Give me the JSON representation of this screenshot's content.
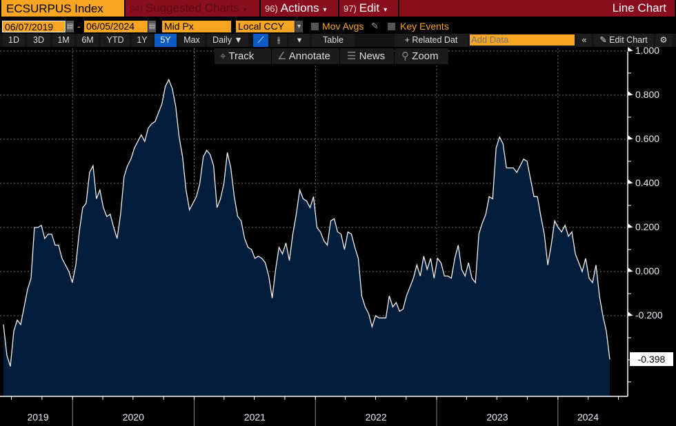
{
  "header": {
    "ticker": "ECSURPUS Index",
    "suggested": {
      "num": "94)",
      "label": "Suggested Charts"
    },
    "actions": {
      "num": "96)",
      "label": "Actions"
    },
    "edit": {
      "num": "97)",
      "label": "Edit"
    },
    "chart_type": "Line Chart"
  },
  "controls": {
    "start_date": "06/07/2019",
    "end_date": "06/05/2024",
    "dash": "-",
    "price": "Mid Px",
    "currency": "Local CCY",
    "mov_avgs": "Mov Avgs",
    "key_events": "Key Events",
    "ranges": [
      "1D",
      "3D",
      "1M",
      "6M",
      "YTD",
      "1Y",
      "5Y",
      "Max"
    ],
    "active_range": "5Y",
    "frequency": "Daily ▼",
    "table": "Table",
    "related": "+ Related Dat",
    "add_data_placeholder": "Add Data",
    "edit_chart": "Edit Chart"
  },
  "tools": {
    "track": "Track",
    "annotate": "Annotate",
    "news": "News",
    "zoom": "Zoom"
  },
  "colors": {
    "header": "#8a0f1e",
    "accent": "#f7a523",
    "fill": "#031d3a",
    "line": "#ffffff",
    "active": "#0b5bc4"
  },
  "chart_data": {
    "type": "area",
    "title": "ECSURPUS Index",
    "start": "2019-06-07",
    "end": "2024-06-05",
    "frequency": "evenly spaced samples",
    "ylim": [
      -0.556,
      1.0
    ],
    "y_ticks": [
      "1.000",
      "0.800",
      "0.600",
      "0.400",
      "0.200",
      "0.000",
      "-0.200"
    ],
    "y_tick_values": [
      1.0,
      0.8,
      0.6,
      0.4,
      0.2,
      0.0,
      -0.2
    ],
    "x_labels": [
      "2019",
      "2020",
      "2021",
      "2022",
      "2023",
      "2024"
    ],
    "x_year_starts": [
      2020,
      2021,
      2022,
      2023,
      2024
    ],
    "last_value": "-0.398",
    "grid": true,
    "values": [
      -0.24,
      -0.38,
      -0.43,
      -0.27,
      -0.22,
      -0.24,
      -0.16,
      -0.08,
      -0.03,
      0.2,
      0.2,
      0.21,
      0.15,
      0.17,
      0.17,
      0.12,
      0.12,
      0.06,
      0.03,
      0.0,
      -0.05,
      0.03,
      0.18,
      0.29,
      0.31,
      0.45,
      0.48,
      0.33,
      0.37,
      0.29,
      0.25,
      0.26,
      0.2,
      0.15,
      0.26,
      0.43,
      0.48,
      0.51,
      0.56,
      0.59,
      0.62,
      0.59,
      0.65,
      0.67,
      0.68,
      0.72,
      0.76,
      0.84,
      0.87,
      0.83,
      0.75,
      0.61,
      0.52,
      0.37,
      0.28,
      0.31,
      0.34,
      0.4,
      0.52,
      0.55,
      0.53,
      0.48,
      0.29,
      0.33,
      0.4,
      0.54,
      0.47,
      0.34,
      0.25,
      0.23,
      0.15,
      0.11,
      0.1,
      0.06,
      0.07,
      0.06,
      0.04,
      -0.02,
      -0.12,
      0.01,
      0.11,
      0.08,
      0.13,
      0.05,
      0.17,
      0.26,
      0.37,
      0.33,
      0.32,
      0.29,
      0.34,
      0.2,
      0.18,
      0.14,
      0.12,
      0.23,
      0.24,
      0.18,
      0.17,
      0.1,
      0.18,
      0.17,
      0.11,
      0.06,
      -0.11,
      -0.16,
      -0.19,
      -0.25,
      -0.2,
      -0.21,
      -0.21,
      -0.21,
      -0.11,
      -0.16,
      -0.14,
      -0.18,
      -0.17,
      -0.11,
      -0.07,
      -0.03,
      0.03,
      -0.02,
      0.07,
      0.01,
      0.06,
      -0.03,
      0.06,
      0.04,
      -0.02,
      -0.02,
      -0.03,
      0.06,
      0.12,
      0.01,
      -0.02,
      0.04,
      -0.03,
      -0.05,
      0.17,
      0.22,
      0.26,
      0.34,
      0.33,
      0.56,
      0.61,
      0.58,
      0.47,
      0.47,
      0.47,
      0.45,
      0.48,
      0.51,
      0.5,
      0.42,
      0.34,
      0.34,
      0.25,
      0.17,
      0.03,
      0.12,
      0.23,
      0.2,
      0.18,
      0.21,
      0.16,
      0.18,
      0.08,
      0.04,
      0.0,
      0.06,
      -0.03,
      -0.05,
      0.03,
      -0.11,
      -0.2,
      -0.27,
      -0.398
    ]
  }
}
